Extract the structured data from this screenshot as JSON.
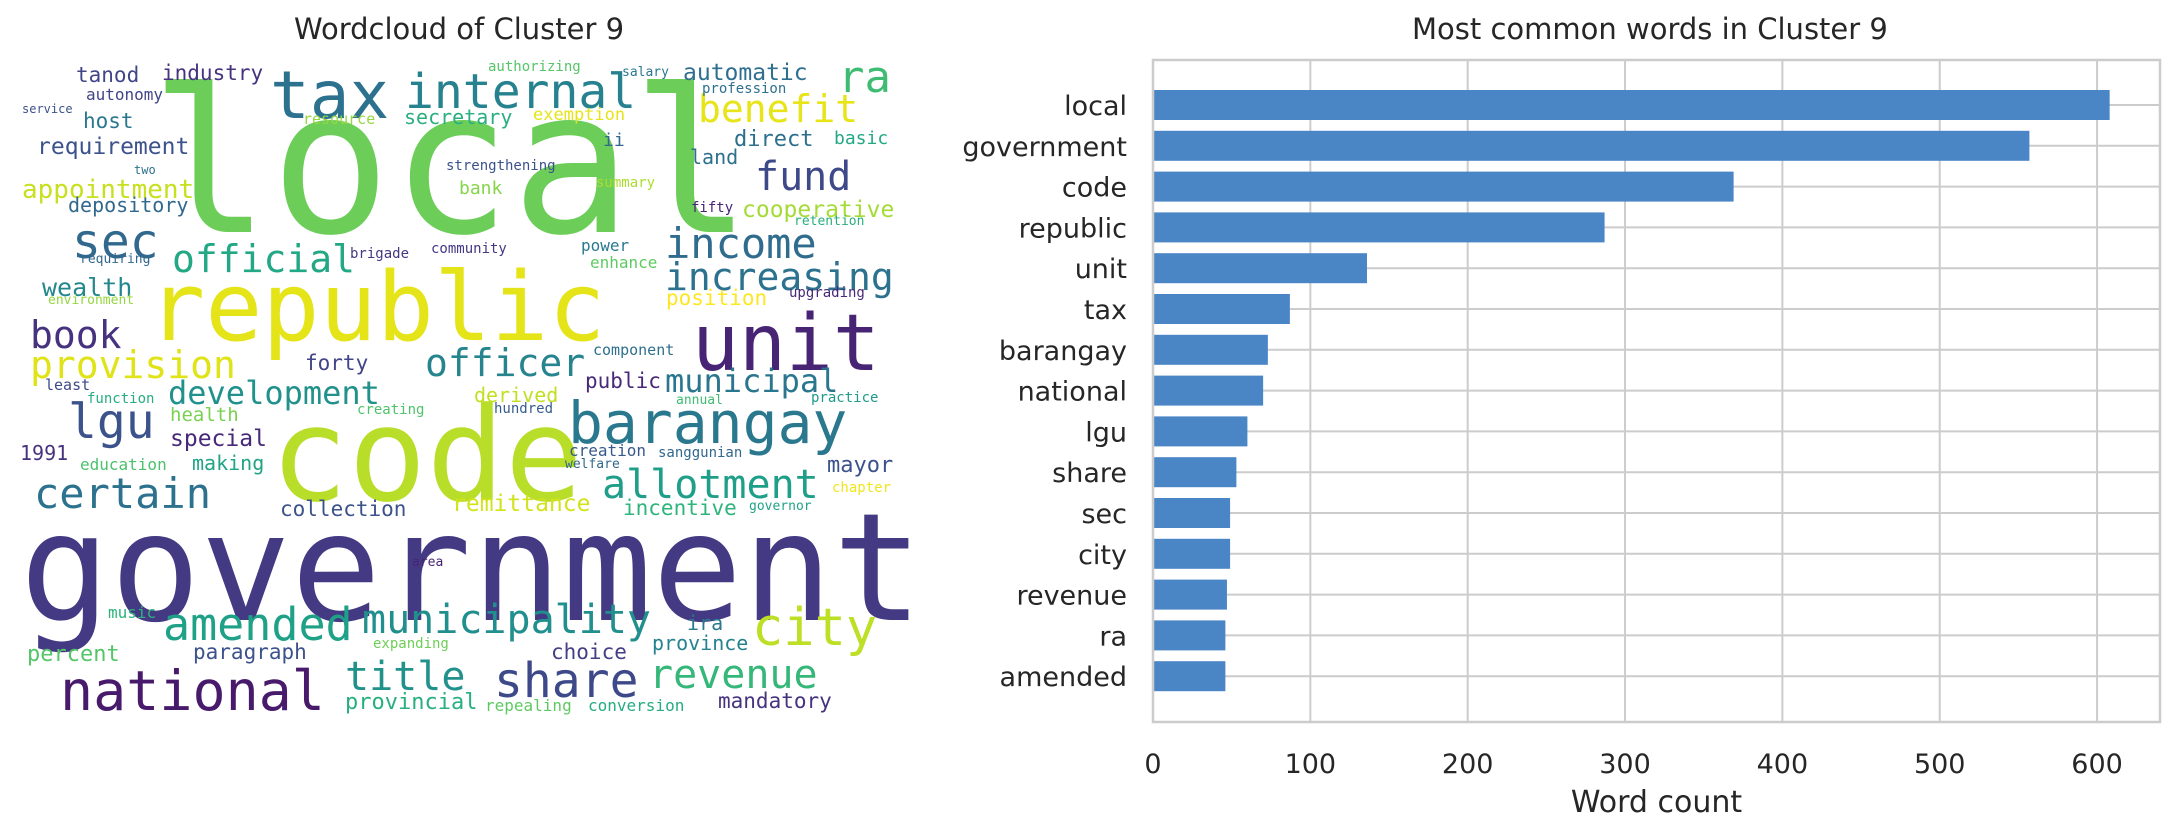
{
  "wordcloud": {
    "title": "Wordcloud of Cluster 9",
    "words": [
      {
        "text": "local",
        "color": "#6cce59"
      },
      {
        "text": "government",
        "color": "#443a83"
      },
      {
        "text": "code",
        "color": "#b8de29"
      },
      {
        "text": "republic",
        "color": "#e4e419"
      },
      {
        "text": "unit",
        "color": "#482475"
      },
      {
        "text": "tax",
        "color": "#2c728e"
      },
      {
        "text": "barangay",
        "color": "#2a788e"
      },
      {
        "text": "national",
        "color": "#481a6c"
      },
      {
        "text": "internal",
        "color": "#26828e"
      },
      {
        "text": "sec",
        "color": "#31688e"
      },
      {
        "text": "income",
        "color": "#2f6c8e"
      },
      {
        "text": "increasing",
        "color": "#2c728e"
      },
      {
        "text": "official",
        "color": "#22a884"
      },
      {
        "text": "benefit",
        "color": "#e7e419"
      },
      {
        "text": "ra",
        "color": "#3fbc73"
      },
      {
        "text": "fund",
        "color": "#3e4989"
      },
      {
        "text": "book",
        "color": "#46327e"
      },
      {
        "text": "provision",
        "color": "#dfe318"
      },
      {
        "text": "officer",
        "color": "#25848e"
      },
      {
        "text": "lgu",
        "color": "#3b528b"
      },
      {
        "text": "development",
        "color": "#21918c"
      },
      {
        "text": "municipal",
        "color": "#2a768e"
      },
      {
        "text": "certain",
        "color": "#2c728e"
      },
      {
        "text": "allotment",
        "color": "#1f9e89"
      },
      {
        "text": "amended",
        "color": "#1fa187"
      },
      {
        "text": "municipality",
        "color": "#218f8d"
      },
      {
        "text": "city",
        "color": "#bddf26"
      },
      {
        "text": "title",
        "color": "#21918c"
      },
      {
        "text": "share",
        "color": "#3e4989"
      },
      {
        "text": "revenue",
        "color": "#35b779"
      },
      {
        "text": "automatic",
        "color": "#2e6e8e"
      },
      {
        "text": "secretary",
        "color": "#29af7f"
      },
      {
        "text": "direct",
        "color": "#2d708e"
      },
      {
        "text": "cooperative",
        "color": "#a5db36"
      },
      {
        "text": "position",
        "color": "#fde725"
      },
      {
        "text": "wealth",
        "color": "#23888e"
      },
      {
        "text": "appointment",
        "color": "#c8e020"
      },
      {
        "text": "requirement",
        "color": "#3b528b"
      },
      {
        "text": "depository",
        "color": "#31688e"
      },
      {
        "text": "host",
        "color": "#2a788e"
      },
      {
        "text": "tanod",
        "color": "#404688"
      },
      {
        "text": "industry",
        "color": "#46327e"
      },
      {
        "text": "autonomy",
        "color": "#414487"
      },
      {
        "text": "special",
        "color": "#482878"
      },
      {
        "text": "forty",
        "color": "#414487"
      },
      {
        "text": "health",
        "color": "#7ad151"
      },
      {
        "text": "making",
        "color": "#20a486"
      },
      {
        "text": "1991",
        "color": "#46327e"
      },
      {
        "text": "education",
        "color": "#4ac16d"
      },
      {
        "text": "collection",
        "color": "#3b528b"
      },
      {
        "text": "remittance",
        "color": "#d2e21b"
      },
      {
        "text": "incentive",
        "color": "#2fb47c"
      },
      {
        "text": "mayor",
        "color": "#3b528b"
      },
      {
        "text": "public",
        "color": "#482878"
      },
      {
        "text": "derived",
        "color": "#c2df23"
      },
      {
        "text": "paragraph",
        "color": "#3b528b"
      },
      {
        "text": "percent",
        "color": "#54c568"
      },
      {
        "text": "provincial",
        "color": "#29af7f"
      },
      {
        "text": "choice",
        "color": "#433e85"
      },
      {
        "text": "province",
        "color": "#26828e"
      },
      {
        "text": "ira",
        "color": "#2a788e"
      },
      {
        "text": "mandatory",
        "color": "#46337f"
      },
      {
        "text": "conversion",
        "color": "#25ac82"
      },
      {
        "text": "repealing",
        "color": "#5ec962"
      },
      {
        "text": "expanding",
        "color": "#6ece58"
      },
      {
        "text": "music",
        "color": "#2db27d"
      },
      {
        "text": "area",
        "color": "#482475"
      },
      {
        "text": "governor",
        "color": "#20a386"
      },
      {
        "text": "chapter",
        "color": "#f1e51d"
      },
      {
        "text": "welfare",
        "color": "#31688e"
      },
      {
        "text": "creation",
        "color": "#38598c"
      },
      {
        "text": "sanggunian",
        "color": "#31688e"
      },
      {
        "text": "practice",
        "color": "#1f9a8a"
      },
      {
        "text": "annual",
        "color": "#3dbc74"
      },
      {
        "text": "component",
        "color": "#2e6f8e"
      },
      {
        "text": "hundred",
        "color": "#365c8d"
      },
      {
        "text": "creating",
        "color": "#4ec36b"
      },
      {
        "text": "function",
        "color": "#27ad81"
      },
      {
        "text": "least",
        "color": "#3e4989"
      },
      {
        "text": "environment",
        "color": "#93d741"
      },
      {
        "text": "requiring",
        "color": "#31688e"
      },
      {
        "text": "brigade",
        "color": "#453781"
      },
      {
        "text": "community",
        "color": "#453781"
      },
      {
        "text": "power",
        "color": "#2a788e"
      },
      {
        "text": "enhance",
        "color": "#5ec962"
      },
      {
        "text": "upgrading",
        "color": "#482878"
      },
      {
        "text": "fifty",
        "color": "#482475"
      },
      {
        "text": "retention",
        "color": "#29af7f"
      },
      {
        "text": "bank",
        "color": "#86d549"
      },
      {
        "text": "land",
        "color": "#2d708e"
      },
      {
        "text": "ii",
        "color": "#31688e"
      },
      {
        "text": "basic",
        "color": "#22a884"
      },
      {
        "text": "summary",
        "color": "#addc30"
      },
      {
        "text": "strengthening",
        "color": "#3b528b"
      },
      {
        "text": "exemption",
        "color": "#e5e419"
      },
      {
        "text": "resource",
        "color": "#95d840"
      },
      {
        "text": "authorizing",
        "color": "#54c568"
      },
      {
        "text": "salary",
        "color": "#2a788e"
      },
      {
        "text": "profession",
        "color": "#2d708e"
      },
      {
        "text": "two",
        "color": "#2c728e"
      },
      {
        "text": "service",
        "color": "#3b528b"
      }
    ]
  },
  "chart_data": {
    "type": "bar",
    "orientation": "horizontal",
    "title": "Most common words in Cluster 9",
    "xlabel": "Word count",
    "ylabel": "",
    "categories": [
      "local",
      "government",
      "code",
      "republic",
      "unit",
      "tax",
      "barangay",
      "national",
      "lgu",
      "share",
      "sec",
      "city",
      "revenue",
      "ra",
      "amended"
    ],
    "values": [
      608,
      557,
      369,
      287,
      136,
      87,
      73,
      70,
      60,
      53,
      49,
      49,
      47,
      46,
      46
    ],
    "xlim": [
      0,
      640
    ],
    "xticks": [
      0,
      100,
      200,
      300,
      400,
      500,
      600
    ],
    "grid": true,
    "bar_color": "#4a86c6"
  }
}
